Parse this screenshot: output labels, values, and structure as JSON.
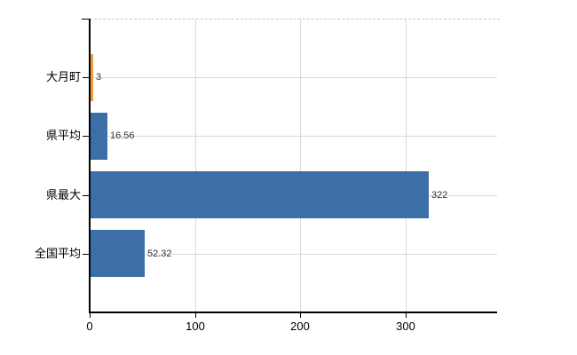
{
  "chart_data": {
    "type": "bar",
    "orientation": "horizontal",
    "title": "",
    "xlabel": "",
    "ylabel": "",
    "categories": [
      "大月町",
      "県平均",
      "県最大",
      "全国平均"
    ],
    "values": [
      3,
      16.56,
      322,
      52.32
    ],
    "value_labels": [
      "3",
      "16.56",
      "322",
      "52.32"
    ],
    "bar_colors": [
      "#f09b40",
      "#3c6fa8",
      "#3c6fa8",
      "#3c6fa8"
    ],
    "xlim": [
      0,
      387
    ],
    "x_ticks": [
      0,
      100,
      200,
      300
    ],
    "x_tick_labels": [
      "0",
      "100",
      "200",
      "300"
    ],
    "grid": true,
    "legend": false
  },
  "colors": {
    "axis": "#000000",
    "gridline": "#d9d9d9",
    "top_border": "#c8c8c8",
    "value_label": "#333333",
    "tick_label": "#000000",
    "background": "#ffffff"
  }
}
